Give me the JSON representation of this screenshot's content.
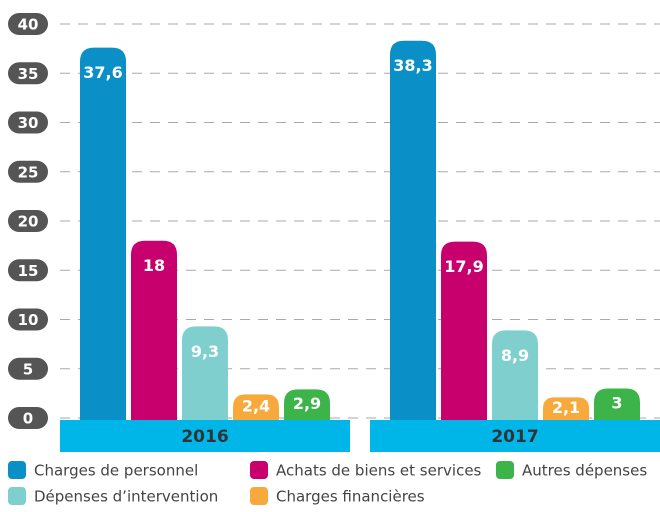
{
  "chart_data": {
    "type": "bar",
    "categories": [
      "2016",
      "2017"
    ],
    "series": [
      {
        "name": "Charges de personnel",
        "color": "#0a8fc7",
        "values": [
          37.6,
          38.3
        ],
        "value_labels": [
          "37,6",
          "38,3"
        ]
      },
      {
        "name": "Achats de biens et services",
        "color": "#c8006e",
        "values": [
          18,
          17.9
        ],
        "value_labels": [
          "18",
          "17,9"
        ]
      },
      {
        "name": "Dépenses d’intervention",
        "color": "#7fcfcf",
        "values": [
          9.3,
          8.9
        ],
        "value_labels": [
          "9,3",
          "8,9"
        ]
      },
      {
        "name": "Charges financières",
        "color": "#f7a93b",
        "values": [
          2.4,
          2.1
        ],
        "value_labels": [
          "2,4",
          "2,1"
        ]
      },
      {
        "name": "Autres dépenses",
        "color": "#3cb44a",
        "values": [
          2.9,
          3
        ],
        "value_labels": [
          "2,9",
          "3"
        ]
      }
    ],
    "ylim": [
      0,
      40
    ],
    "yticks": [
      0,
      5,
      10,
      15,
      20,
      25,
      30,
      35,
      40
    ],
    "grid": true
  }
}
